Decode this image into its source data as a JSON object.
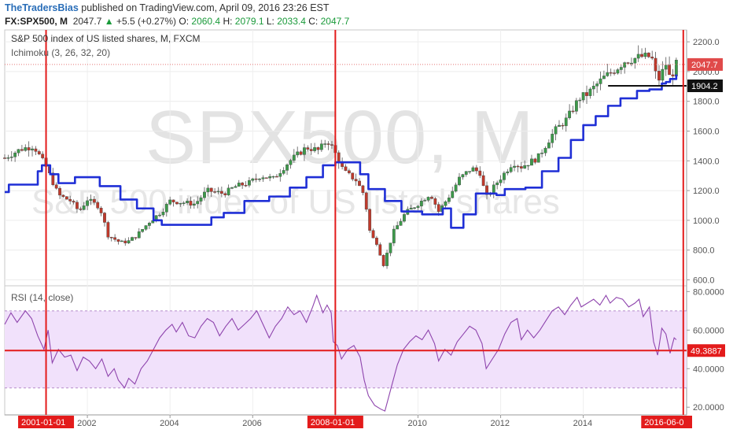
{
  "header": {
    "author": "TheTradersBias",
    "published_text": "published on TradingView.com, April 09, 2016 23:26 EST",
    "symbol": "FX:SPX500, M",
    "last": "2047.7",
    "change_arrow": "▲",
    "change": "+5.5 (+0.27%)",
    "o_label": "O:",
    "o_value": "2060.4",
    "h_label": "H:",
    "h_value": "2079.1",
    "l_label": "L:",
    "l_value": "2033.4",
    "c_label": "C:",
    "c_value": "2047.7"
  },
  "main_panel": {
    "title": "S&P 500 index of US listed shares, M, FXCM",
    "indicator": "Ichimoku (3, 26, 32, 20)",
    "watermark_big": "SPX500, M",
    "watermark_small": "S&P 500 index of US listed shares"
  },
  "rsi_panel": {
    "title": "RSI (14, close)"
  },
  "colors": {
    "up": "#3c9a4a",
    "down": "#c0392b",
    "ichimoku": "#1f2fd6",
    "rsi": "#8e44ad",
    "rsi_band": "#f1e1fb",
    "vline": "#e31b1b",
    "hline_black": "#111111"
  },
  "chart_data": [
    {
      "type": "candlestick",
      "title": "S&P 500 index of US listed shares, M, FXCM",
      "x_ticks": [
        "2002",
        "2004",
        "2006",
        "2008",
        "2010",
        "2012",
        "2014"
      ],
      "y_ticks": [
        600.0,
        800.0,
        1000.0,
        1200.0,
        1400.0,
        1600.0,
        1800.0,
        2000.0,
        2200.0
      ],
      "xlim": [
        2000.0,
        2016.5
      ],
      "ylim": [
        560,
        2280
      ],
      "last_price_label": "2047.7",
      "horizontal_level": 1904.2,
      "horizontal_level_label": "1904.2",
      "vertical_markers": [
        {
          "x": 2001.0,
          "label": "2001-01-01"
        },
        {
          "x": 2008.0,
          "label": "2008-01-01"
        },
        {
          "x": 2016.42,
          "label": "2016-06-0"
        }
      ],
      "price_anchors": [
        [
          2000.0,
          1420
        ],
        [
          2000.4,
          1480
        ],
        [
          2000.7,
          1500
        ],
        [
          2001.0,
          1360
        ],
        [
          2001.3,
          1170
        ],
        [
          2001.6,
          1130
        ],
        [
          2001.8,
          1060
        ],
        [
          2002.0,
          1140
        ],
        [
          2002.3,
          1090
        ],
        [
          2002.5,
          900
        ],
        [
          2002.8,
          850
        ],
        [
          2003.0,
          860
        ],
        [
          2003.2,
          900
        ],
        [
          2003.5,
          990
        ],
        [
          2003.8,
          1060
        ],
        [
          2004.0,
          1130
        ],
        [
          2004.3,
          1120
        ],
        [
          2004.6,
          1110
        ],
        [
          2004.9,
          1200
        ],
        [
          2005.3,
          1180
        ],
        [
          2005.6,
          1230
        ],
        [
          2005.9,
          1250
        ],
        [
          2006.2,
          1300
        ],
        [
          2006.5,
          1280
        ],
        [
          2006.9,
          1400
        ],
        [
          2007.3,
          1490
        ],
        [
          2007.6,
          1470
        ],
        [
          2007.8,
          1540
        ],
        [
          2007.95,
          1480
        ],
        [
          2008.2,
          1330
        ],
        [
          2008.5,
          1270
        ],
        [
          2008.7,
          1170
        ],
        [
          2008.85,
          900
        ],
        [
          2009.0,
          850
        ],
        [
          2009.17,
          700
        ],
        [
          2009.4,
          920
        ],
        [
          2009.7,
          1050
        ],
        [
          2010.0,
          1110
        ],
        [
          2010.3,
          1180
        ],
        [
          2010.5,
          1060
        ],
        [
          2010.8,
          1180
        ],
        [
          2011.0,
          1280
        ],
        [
          2011.3,
          1350
        ],
        [
          2011.5,
          1320
        ],
        [
          2011.65,
          1150
        ],
        [
          2011.9,
          1250
        ],
        [
          2012.3,
          1390
        ],
        [
          2012.5,
          1360
        ],
        [
          2012.9,
          1420
        ],
        [
          2013.3,
          1600
        ],
        [
          2013.6,
          1680
        ],
        [
          2013.9,
          1820
        ],
        [
          2014.1,
          1850
        ],
        [
          2014.5,
          1960
        ],
        [
          2014.8,
          2020
        ],
        [
          2015.0,
          2070
        ],
        [
          2015.4,
          2100
        ],
        [
          2015.65,
          2100
        ],
        [
          2015.8,
          1930
        ],
        [
          2016.0,
          2050
        ],
        [
          2016.1,
          1950
        ],
        [
          2016.25,
          2047.7
        ]
      ],
      "ichimoku_steps": [
        [
          2000.0,
          1190
        ],
        [
          2000.1,
          1240
        ],
        [
          2000.7,
          1240
        ],
        [
          2000.8,
          1330
        ],
        [
          2000.9,
          1370
        ],
        [
          2001.1,
          1310
        ],
        [
          2001.3,
          1250
        ],
        [
          2001.7,
          1290
        ],
        [
          2002.3,
          1230
        ],
        [
          2002.8,
          1140
        ],
        [
          2003.2,
          1080
        ],
        [
          2003.6,
          1000
        ],
        [
          2003.8,
          970
        ],
        [
          2004.8,
          970
        ],
        [
          2005.0,
          1020
        ],
        [
          2005.3,
          1050
        ],
        [
          2005.8,
          1130
        ],
        [
          2006.4,
          1160
        ],
        [
          2006.9,
          1220
        ],
        [
          2007.3,
          1290
        ],
        [
          2007.7,
          1370
        ],
        [
          2008.0,
          1390
        ],
        [
          2008.4,
          1390
        ],
        [
          2008.6,
          1310
        ],
        [
          2008.8,
          1210
        ],
        [
          2009.2,
          1130
        ],
        [
          2009.6,
          1060
        ],
        [
          2010.1,
          1040
        ],
        [
          2010.6,
          1080
        ],
        [
          2010.8,
          950
        ],
        [
          2011.1,
          1040
        ],
        [
          2011.4,
          1180
        ],
        [
          2011.9,
          1170
        ],
        [
          2012.1,
          1210
        ],
        [
          2012.6,
          1220
        ],
        [
          2013.0,
          1330
        ],
        [
          2013.4,
          1420
        ],
        [
          2013.7,
          1540
        ],
        [
          2014.0,
          1640
        ],
        [
          2014.3,
          1700
        ],
        [
          2014.6,
          1770
        ],
        [
          2014.9,
          1820
        ],
        [
          2015.3,
          1870
        ],
        [
          2015.6,
          1880
        ],
        [
          2015.9,
          1920
        ],
        [
          2016.0,
          1930
        ],
        [
          2016.1,
          1950
        ],
        [
          2016.25,
          1980
        ]
      ]
    },
    {
      "type": "line",
      "title": "RSI (14, close)",
      "y_ticks": [
        20.0,
        40.0,
        60.0,
        80.0
      ],
      "y_tick_labels": [
        "20.0000",
        "40.0000",
        "60.0000",
        "80.0000"
      ],
      "ylim": [
        16,
        83
      ],
      "overbought": 70,
      "oversold": 30,
      "horizontal_level": 49.3887,
      "horizontal_level_label": "49.3887",
      "series": [
        {
          "values": [
            [
              2000.0,
              63
            ],
            [
              2000.15,
              69
            ],
            [
              2000.3,
              64
            ],
            [
              2000.5,
              70
            ],
            [
              2000.65,
              66
            ],
            [
              2000.8,
              57
            ],
            [
              2000.95,
              50
            ],
            [
              2001.05,
              60
            ],
            [
              2001.15,
              43
            ],
            [
              2001.3,
              50
            ],
            [
              2001.45,
              46
            ],
            [
              2001.6,
              47
            ],
            [
              2001.75,
              39
            ],
            [
              2001.9,
              46
            ],
            [
              2002.05,
              44
            ],
            [
              2002.2,
              40
            ],
            [
              2002.35,
              45
            ],
            [
              2002.5,
              36
            ],
            [
              2002.65,
              40
            ],
            [
              2002.75,
              34
            ],
            [
              2002.9,
              30
            ],
            [
              2003.0,
              35
            ],
            [
              2003.15,
              32
            ],
            [
              2003.3,
              40
            ],
            [
              2003.45,
              44
            ],
            [
              2003.6,
              50
            ],
            [
              2003.75,
              56
            ],
            [
              2003.9,
              60
            ],
            [
              2004.05,
              63
            ],
            [
              2004.15,
              59
            ],
            [
              2004.3,
              64
            ],
            [
              2004.45,
              57
            ],
            [
              2004.6,
              56
            ],
            [
              2004.75,
              62
            ],
            [
              2004.9,
              66
            ],
            [
              2005.05,
              64
            ],
            [
              2005.2,
              57
            ],
            [
              2005.35,
              62
            ],
            [
              2005.5,
              66
            ],
            [
              2005.65,
              60
            ],
            [
              2005.8,
              63
            ],
            [
              2005.95,
              66
            ],
            [
              2006.1,
              70
            ],
            [
              2006.25,
              63
            ],
            [
              2006.4,
              56
            ],
            [
              2006.55,
              62
            ],
            [
              2006.7,
              66
            ],
            [
              2006.85,
              72
            ],
            [
              2007.0,
              68
            ],
            [
              2007.15,
              70
            ],
            [
              2007.3,
              64
            ],
            [
              2007.45,
              72
            ],
            [
              2007.55,
              78
            ],
            [
              2007.7,
              69
            ],
            [
              2007.8,
              73
            ],
            [
              2007.9,
              69
            ],
            [
              2007.95,
              54
            ],
            [
              2008.05,
              52
            ],
            [
              2008.15,
              45
            ],
            [
              2008.3,
              50
            ],
            [
              2008.45,
              52
            ],
            [
              2008.6,
              46
            ],
            [
              2008.7,
              34
            ],
            [
              2008.8,
              26
            ],
            [
              2008.95,
              21
            ],
            [
              2009.1,
              19
            ],
            [
              2009.2,
              18
            ],
            [
              2009.35,
              30
            ],
            [
              2009.5,
              42
            ],
            [
              2009.65,
              50
            ],
            [
              2009.8,
              54
            ],
            [
              2009.95,
              57
            ],
            [
              2010.1,
              55
            ],
            [
              2010.25,
              60
            ],
            [
              2010.4,
              53
            ],
            [
              2010.5,
              44
            ],
            [
              2010.65,
              50
            ],
            [
              2010.8,
              47
            ],
            [
              2010.95,
              54
            ],
            [
              2011.1,
              58
            ],
            [
              2011.25,
              62
            ],
            [
              2011.4,
              60
            ],
            [
              2011.55,
              53
            ],
            [
              2011.65,
              40
            ],
            [
              2011.8,
              45
            ],
            [
              2011.95,
              50
            ],
            [
              2012.1,
              58
            ],
            [
              2012.25,
              64
            ],
            [
              2012.4,
              66
            ],
            [
              2012.5,
              55
            ],
            [
              2012.65,
              60
            ],
            [
              2012.8,
              56
            ],
            [
              2012.95,
              60
            ],
            [
              2013.1,
              65
            ],
            [
              2013.25,
              70
            ],
            [
              2013.4,
              72
            ],
            [
              2013.55,
              68
            ],
            [
              2013.7,
              73
            ],
            [
              2013.85,
              77
            ],
            [
              2013.95,
              72
            ],
            [
              2014.1,
              74
            ],
            [
              2014.25,
              76
            ],
            [
              2014.4,
              73
            ],
            [
              2014.55,
              78
            ],
            [
              2014.65,
              74
            ],
            [
              2014.8,
              77
            ],
            [
              2014.95,
              76
            ],
            [
              2015.1,
              72
            ],
            [
              2015.25,
              74
            ],
            [
              2015.35,
              76
            ],
            [
              2015.45,
              67
            ],
            [
              2015.6,
              72
            ],
            [
              2015.7,
              54
            ],
            [
              2015.8,
              47
            ],
            [
              2015.9,
              61
            ],
            [
              2016.0,
              58
            ],
            [
              2016.1,
              48
            ],
            [
              2016.2,
              56
            ],
            [
              2016.25,
              55
            ]
          ]
        }
      ]
    }
  ]
}
